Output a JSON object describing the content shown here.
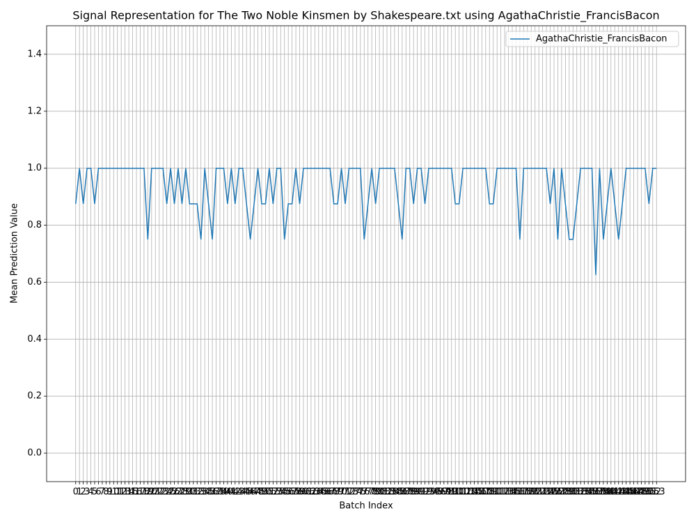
{
  "chart_data": {
    "type": "line",
    "title": "Signal Representation for The Two Noble Kinsmen by Shakespeare.txt using AgathaChristie_FrancisBacon",
    "xlabel": "Batch Index",
    "ylabel": "Mean Prediction Value",
    "x": [
      0,
      1,
      2,
      3,
      4,
      5,
      6,
      7,
      8,
      9,
      10,
      11,
      12,
      13,
      14,
      15,
      16,
      17,
      18,
      19,
      20,
      21,
      22,
      23,
      24,
      25,
      26,
      27,
      28,
      29,
      30,
      31,
      32,
      33,
      34,
      35,
      36,
      37,
      38,
      39,
      40,
      41,
      42,
      43,
      44,
      45,
      46,
      47,
      48,
      49,
      50,
      51,
      52,
      53,
      54,
      55,
      56,
      57,
      58,
      59,
      60,
      61,
      62,
      63,
      64,
      65,
      66,
      67,
      68,
      69,
      70,
      71,
      72,
      73,
      74,
      75,
      76,
      77,
      78,
      79,
      80,
      81,
      82,
      83,
      84,
      85,
      86,
      87,
      88,
      89,
      90,
      91,
      92,
      93,
      94,
      95,
      96,
      97,
      98,
      99,
      100,
      101,
      102,
      103,
      104,
      105,
      106,
      107,
      108,
      109,
      110,
      111,
      112,
      113,
      114,
      115,
      116,
      117,
      118,
      119,
      120,
      121,
      122,
      123,
      124,
      125,
      126,
      127,
      128,
      129,
      130,
      131,
      132,
      133,
      134,
      135,
      136,
      137,
      138,
      139,
      140,
      141,
      142,
      143,
      144,
      145,
      146,
      147,
      148,
      149,
      150,
      151,
      152,
      153
    ],
    "series": [
      {
        "name": "AgathaChristie_FrancisBacon",
        "color": "#1f77b4",
        "values": [
          0.875,
          1,
          0.875,
          1,
          1,
          0.875,
          1,
          1,
          1,
          1,
          1,
          1,
          1,
          1,
          1,
          1,
          1,
          1,
          1,
          0.75,
          1,
          1,
          1,
          1,
          0.875,
          1,
          0.875,
          1,
          0.875,
          1,
          0.875,
          0.875,
          0.875,
          0.75,
          1,
          0.875,
          0.75,
          1,
          1,
          1,
          0.875,
          1,
          0.875,
          1,
          1,
          0.875,
          0.75,
          0.875,
          1,
          0.875,
          0.875,
          1,
          0.875,
          1,
          1,
          0.75,
          0.875,
          0.875,
          1,
          0.875,
          1,
          1,
          1,
          1,
          1,
          1,
          1,
          1,
          0.875,
          0.875,
          1,
          0.875,
          1,
          1,
          1,
          1,
          0.75,
          0.875,
          1,
          0.875,
          1,
          1,
          1,
          1,
          1,
          0.875,
          0.75,
          1,
          1,
          0.875,
          1,
          1,
          0.875,
          1,
          1,
          1,
          1,
          1,
          1,
          1,
          0.875,
          0.875,
          1,
          1,
          1,
          1,
          1,
          1,
          1,
          0.875,
          0.875,
          1,
          1,
          1,
          1,
          1,
          1,
          0.75,
          1,
          1,
          1,
          1,
          1,
          1,
          1,
          0.875,
          1,
          0.75,
          1,
          0.875,
          0.75,
          0.75,
          0.875,
          1,
          1,
          1,
          1,
          0.625,
          1,
          0.75,
          0.875,
          1,
          0.875,
          0.75,
          0.875,
          1,
          1,
          1,
          1,
          1,
          1,
          0.875,
          1,
          1
        ]
      }
    ],
    "xlim": [
      -7.65,
      160.65
    ],
    "xticks": [
      0,
      1,
      2,
      3,
      4,
      5,
      6,
      7,
      8,
      9,
      10,
      11,
      12,
      13,
      14,
      15,
      16,
      17,
      18,
      19,
      20,
      21,
      22,
      23,
      24,
      25,
      26,
      27,
      28,
      29,
      30,
      31,
      32,
      33,
      34,
      35,
      36,
      37,
      38,
      39,
      40,
      41,
      42,
      43,
      44,
      45,
      46,
      47,
      48,
      49,
      50,
      51,
      52,
      53,
      54,
      55,
      56,
      57,
      58,
      59,
      60,
      61,
      62,
      63,
      64,
      65,
      66,
      67,
      68,
      69,
      70,
      71,
      72,
      73,
      74,
      75,
      76,
      77,
      78,
      79,
      80,
      81,
      82,
      83,
      84,
      85,
      86,
      87,
      88,
      89,
      90,
      91,
      92,
      93,
      94,
      95,
      96,
      97,
      98,
      99,
      100,
      101,
      102,
      103,
      104,
      105,
      106,
      107,
      108,
      109,
      110,
      111,
      112,
      113,
      114,
      115,
      116,
      117,
      118,
      119,
      120,
      121,
      122,
      123,
      124,
      125,
      126,
      127,
      128,
      129,
      130,
      131,
      132,
      133,
      134,
      135,
      136,
      137,
      138,
      139,
      140,
      141,
      142,
      143,
      144,
      145,
      146,
      147,
      148,
      149,
      150,
      151,
      152,
      153
    ],
    "ylim": [
      -0.1,
      1.5
    ],
    "yticks": [
      {
        "value": 0,
        "label": "0.0"
      },
      0.2,
      0.4,
      0.6,
      0.8,
      {
        "value": 1,
        "label": "1.0"
      },
      1.2,
      1.4
    ],
    "grid": true,
    "legend": "upper right"
  }
}
